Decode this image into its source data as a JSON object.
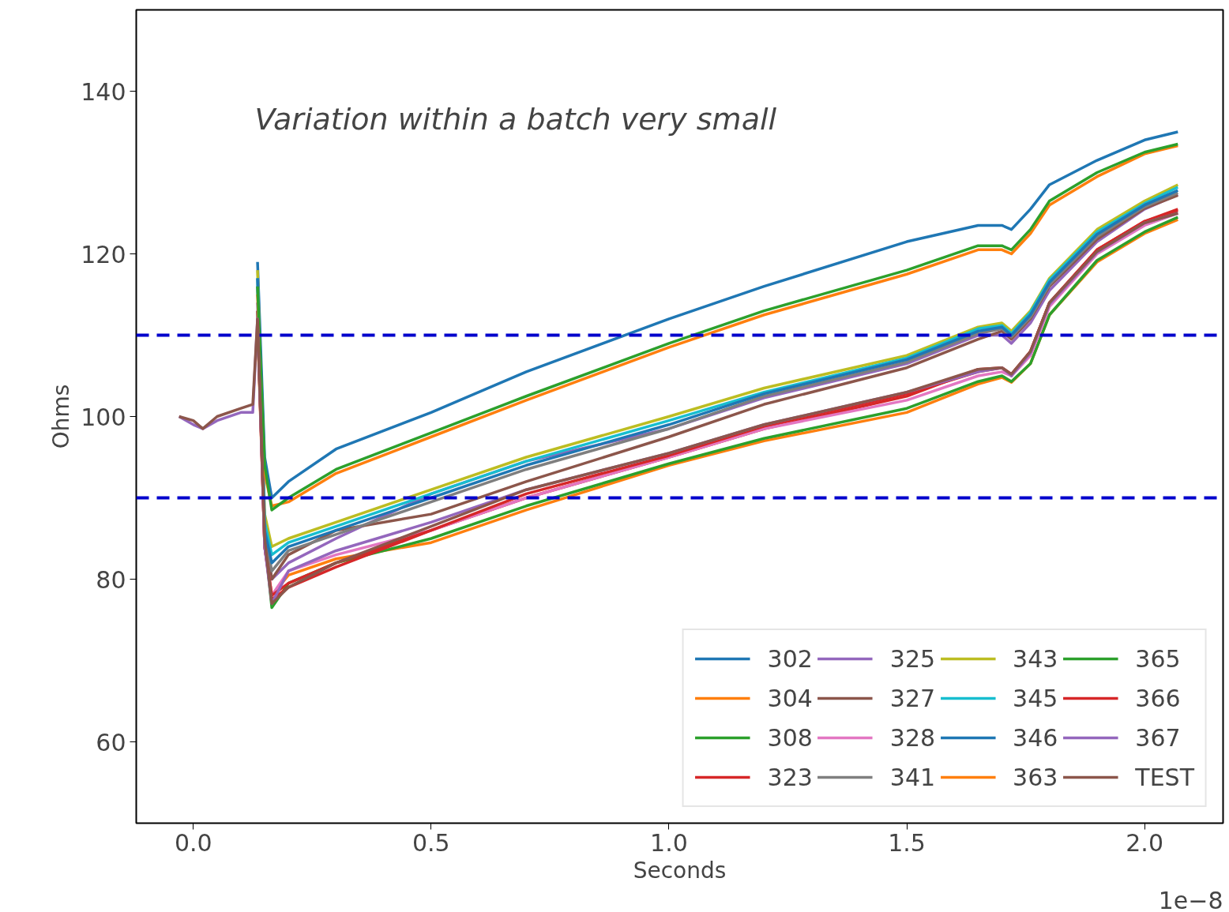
{
  "chart_data": {
    "type": "line",
    "xlabel": "Seconds",
    "ylabel": "Ohms",
    "xlim": [
      -0.12,
      2.165
    ],
    "ylim": [
      50,
      150
    ],
    "xticks": [
      {
        "value": 0,
        "label": "0.0"
      },
      0.5,
      {
        "value": 1,
        "label": "1.0"
      },
      1.5,
      {
        "value": 2,
        "label": "2.0"
      }
    ],
    "yticks": [
      60,
      80,
      100,
      120,
      140
    ],
    "grid": false,
    "legend": "bottom right",
    "marker": "none",
    "line_style": "solid",
    "annotations": [
      "Variation within a batch very small",
      "1e−8"
    ],
    "ref_lines": [
      {
        "axis": "y",
        "value": 110,
        "color": "#0000cc",
        "line_style": "dashed"
      },
      {
        "axis": "y",
        "value": 90,
        "color": "#0000cc",
        "line_style": "dashed"
      }
    ],
    "x": [
      -0.03,
      0.0,
      0.02,
      0.05,
      0.1,
      0.125,
      0.135,
      0.15,
      0.165,
      0.2,
      0.3,
      0.5,
      0.7,
      1.0,
      1.2,
      1.5,
      1.65,
      1.7,
      1.72,
      1.76,
      1.8,
      1.9,
      2.0,
      2.07
    ],
    "series": [
      {
        "name": "302",
        "color": "#1f77b4",
        "values": [
          null,
          null,
          null,
          null,
          null,
          null,
          119,
          95,
          90,
          92,
          96,
          100.5,
          105.5,
          112,
          116,
          121.5,
          123.5,
          123.5,
          123,
          125.5,
          128.5,
          131.5,
          134,
          135
        ]
      },
      {
        "name": "304",
        "color": "#ff7f0e",
        "values": [
          null,
          null,
          null,
          null,
          null,
          null,
          111,
          84,
          78,
          80.5,
          82.5,
          84.5,
          88.5,
          94,
          97,
          100.5,
          104,
          104.8,
          104.2,
          106.5,
          112.5,
          119,
          122.5,
          124.2
        ]
      },
      {
        "name": "308",
        "color": "#2ca02c",
        "values": [
          null,
          null,
          null,
          null,
          null,
          null,
          112,
          85,
          76.5,
          79.5,
          82,
          85,
          89,
          94.2,
          97.3,
          101,
          104.3,
          105,
          104.3,
          106.5,
          112.5,
          119.2,
          122.7,
          124.5
        ]
      },
      {
        "name": "323",
        "color": "#d62728",
        "values": [
          null,
          null,
          null,
          null,
          null,
          null,
          113,
          84,
          77.5,
          79,
          81.5,
          86,
          90,
          95,
          98.5,
          102.5,
          105.8,
          106,
          105,
          108,
          114,
          120.5,
          124,
          125.5
        ]
      },
      {
        "name": "325",
        "color": "#9467bd",
        "values": [
          null,
          null,
          null,
          null,
          null,
          null,
          114,
          85,
          80,
          82,
          85,
          90.5,
          94.5,
          98.5,
          102.3,
          106.5,
          110,
          110,
          109,
          111.5,
          115.5,
          121.5,
          125.5,
          127.3
        ]
      },
      {
        "name": "327",
        "color": "#8c564b",
        "values": [
          null,
          null,
          null,
          null,
          null,
          null,
          113,
          86,
          80,
          83,
          86,
          88,
          92,
          97.5,
          101.5,
          106,
          109.5,
          110.5,
          109.5,
          112,
          116,
          121.8,
          125.6,
          127.2
        ]
      },
      {
        "name": "328",
        "color": "#e377c2",
        "values": [
          null,
          null,
          null,
          null,
          null,
          null,
          112,
          84,
          78,
          81,
          83,
          86,
          90,
          95,
          98.5,
          102,
          105,
          105.5,
          105,
          107.5,
          113.5,
          120,
          123.5,
          125
        ]
      },
      {
        "name": "341",
        "color": "#7f7f7f",
        "values": [
          null,
          null,
          null,
          null,
          null,
          null,
          116,
          86,
          81,
          83.5,
          85.5,
          89.5,
          93.5,
          98.5,
          102.5,
          106.7,
          110.2,
          110.8,
          109.8,
          112.2,
          116.2,
          122.1,
          125.8,
          127.5
        ]
      },
      {
        "name": "343",
        "color": "#bcbd22",
        "values": [
          null,
          null,
          null,
          null,
          null,
          null,
          118,
          88,
          84,
          85,
          87,
          91,
          95,
          100,
          103.5,
          107.5,
          111,
          111.5,
          110.5,
          113,
          117,
          123,
          126.5,
          128.5
        ]
      },
      {
        "name": "345",
        "color": "#17becf",
        "values": [
          null,
          null,
          null,
          null,
          null,
          null,
          117,
          87,
          83,
          84.5,
          86.5,
          90.5,
          94.5,
          99.5,
          103,
          107.2,
          110.8,
          111.2,
          110.2,
          112.8,
          116.8,
          122.7,
          126.2,
          128.2
        ]
      },
      {
        "name": "346",
        "color": "#1f77b4",
        "values": [
          null,
          null,
          null,
          null,
          null,
          null,
          117,
          86,
          82,
          84,
          86,
          90,
          94,
          99,
          102.8,
          107,
          110.5,
          111,
          110,
          112.5,
          116.5,
          122.4,
          126,
          127.8
        ]
      },
      {
        "name": "363",
        "color": "#ff7f0e",
        "values": [
          null,
          null,
          null,
          null,
          null,
          null,
          115,
          93,
          89,
          89.5,
          93,
          97.5,
          102,
          108.5,
          112.5,
          117.5,
          120.5,
          120.5,
          120,
          122.5,
          126,
          129.5,
          132.3,
          133.3
        ]
      },
      {
        "name": "365",
        "color": "#2ca02c",
        "values": [
          null,
          null,
          null,
          null,
          null,
          null,
          116,
          94,
          88.5,
          90,
          93.5,
          98,
          102.5,
          109,
          113,
          118,
          121,
          121,
          120.5,
          123,
          126.5,
          130,
          132.5,
          133.5
        ]
      },
      {
        "name": "366",
        "color": "#d62728",
        "values": [
          null,
          null,
          null,
          null,
          null,
          null,
          112,
          84,
          78,
          79.5,
          82,
          86,
          90.5,
          95.2,
          98.8,
          102.8,
          105.5,
          106,
          105.2,
          108,
          114,
          120.5,
          124,
          125.3
        ]
      },
      {
        "name": "367",
        "color": "#9467bd",
        "values": [
          100,
          99,
          98.5,
          99.5,
          100.5,
          100.5,
          112,
          84,
          77,
          81,
          83.5,
          87,
          91,
          95.5,
          99,
          103,
          105.5,
          106,
          105,
          107.8,
          113.8,
          120.2,
          123.8,
          125
        ]
      },
      {
        "name": "TEST",
        "color": "#8c564b",
        "values": [
          100,
          99.5,
          98.5,
          100,
          101,
          101.5,
          112,
          85,
          77,
          79,
          82,
          86.5,
          91,
          95.5,
          99,
          103,
          105.8,
          106,
          105.2,
          108,
          114,
          120.3,
          123.8,
          125
        ]
      }
    ]
  }
}
